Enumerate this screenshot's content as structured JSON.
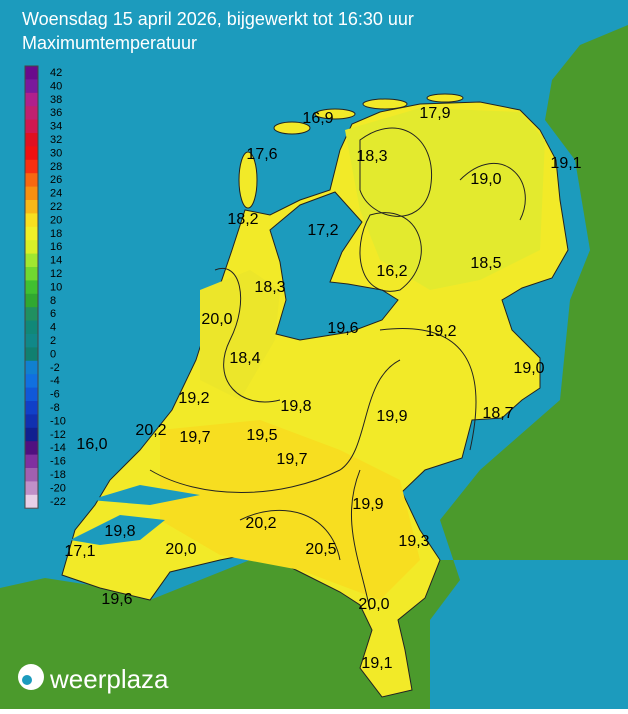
{
  "header": {
    "title": "Woensdag 15 april 2026, bijgewerkt tot 16:30 uur",
    "subtitle": "Maximumtemperatuur"
  },
  "legend": {
    "labels": [
      "42",
      "40",
      "38",
      "36",
      "34",
      "32",
      "30",
      "28",
      "26",
      "24",
      "22",
      "20",
      "18",
      "16",
      "14",
      "12",
      "10",
      "8",
      "6",
      "4",
      "2",
      "0",
      "-2",
      "-4",
      "-6",
      "-8",
      "-10",
      "-12",
      "-14",
      "-16",
      "-18",
      "-20",
      "-22"
    ]
  },
  "stations": [
    {
      "label": "16,9"
    },
    {
      "label": "17,9"
    },
    {
      "label": "17,6"
    },
    {
      "label": "18,3"
    },
    {
      "label": "19,1"
    },
    {
      "label": "19,0"
    },
    {
      "label": "18,2"
    },
    {
      "label": "17,2"
    },
    {
      "label": "16,2"
    },
    {
      "label": "18,5"
    },
    {
      "label": "18,3"
    },
    {
      "label": "20,0"
    },
    {
      "label": "19,6"
    },
    {
      "label": "19,2"
    },
    {
      "label": "19,0"
    },
    {
      "label": "18,4"
    },
    {
      "label": "19,2"
    },
    {
      "label": "19,8"
    },
    {
      "label": "19,9"
    },
    {
      "label": "18,7"
    },
    {
      "label": "16,0"
    },
    {
      "label": "20,2"
    },
    {
      "label": "19,7"
    },
    {
      "label": "19,5"
    },
    {
      "label": "19,7"
    },
    {
      "label": "19,9"
    },
    {
      "label": "19,8"
    },
    {
      "label": "20,2"
    },
    {
      "label": "20,5"
    },
    {
      "label": "19,3"
    },
    {
      "label": "17,1"
    },
    {
      "label": "20,0"
    },
    {
      "label": "19,6"
    },
    {
      "label": "20,0"
    },
    {
      "label": "19,1"
    }
  ],
  "logo": {
    "text": "weerplaza"
  }
}
